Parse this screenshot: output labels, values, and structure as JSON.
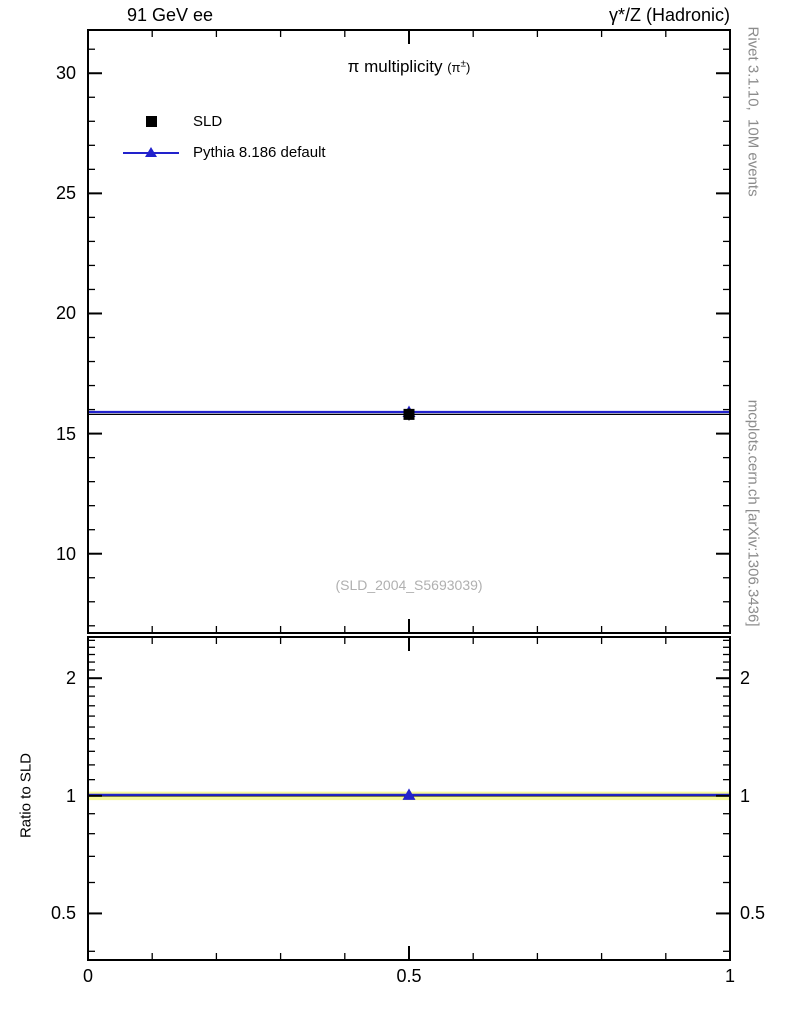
{
  "header": {
    "left": "91 GeV ee",
    "right": "γ*/Z (Hadronic)"
  },
  "main_panel": {
    "title": "π multiplicity",
    "title_paren_open": "(π",
    "title_paren_sup": "±",
    "title_paren_close": ")",
    "watermark": "(SLD_2004_S5693039)"
  },
  "legend": {
    "items": [
      {
        "label": "SLD",
        "marker": "black-square"
      },
      {
        "label": "Pythia 8.186 default",
        "marker": "blue-line-triangle"
      }
    ]
  },
  "side_labels": {
    "rivet": "Rivet 3.1.10,  10M events",
    "mcplots": "mcplots.cern.ch [arXiv:1306.3436]"
  },
  "colors": {
    "mc_blue": "#2222cc",
    "band_yellow": "#f5f89b",
    "data_black": "#000000",
    "side_text_gray": "#8c8c8c",
    "watermark_gray": "#b0b0b0"
  },
  "chart_data": {
    "type": "line",
    "title": "π multiplicity (π±)",
    "analysis": "(SLD_2004_S5693039)",
    "x_range": [
      0,
      1
    ],
    "x_ticks": [
      0,
      0.5,
      1
    ],
    "x_tick_labels": [
      "0",
      "0.5",
      "1"
    ],
    "main": {
      "y_range": [
        6.7,
        31.8
      ],
      "y_ticks": [
        10,
        15,
        20,
        25,
        30
      ],
      "grid": false,
      "legend_position": "top-left",
      "series": [
        {
          "name": "SLD",
          "type": "data-point",
          "x": 0.5,
          "y": 15.8,
          "xerr": [
            0,
            1
          ],
          "yerr": 0.25,
          "marker": "square",
          "color": "#000000"
        },
        {
          "name": "Pythia 8.186 default",
          "type": "mc-histogram",
          "y": 15.9,
          "x_span": [
            0,
            1
          ],
          "marker": "triangle",
          "marker_x": 0.5,
          "color": "#2222cc"
        }
      ]
    },
    "ratio": {
      "ylabel": "Ratio to SLD",
      "y_scale": "log",
      "y_range": [
        0.38,
        2.55
      ],
      "y_ticks": [
        0.5,
        1,
        2
      ],
      "y_tick_labels": [
        "0.5",
        "1",
        "2"
      ],
      "band": {
        "center": 1.0,
        "half_width": 0.025,
        "color": "#f5f89b"
      },
      "ref_line": {
        "y": 1.0,
        "color": "#000000"
      },
      "mc": {
        "y": 1.006,
        "marker_x": 0.5,
        "color": "#2222cc"
      }
    }
  }
}
